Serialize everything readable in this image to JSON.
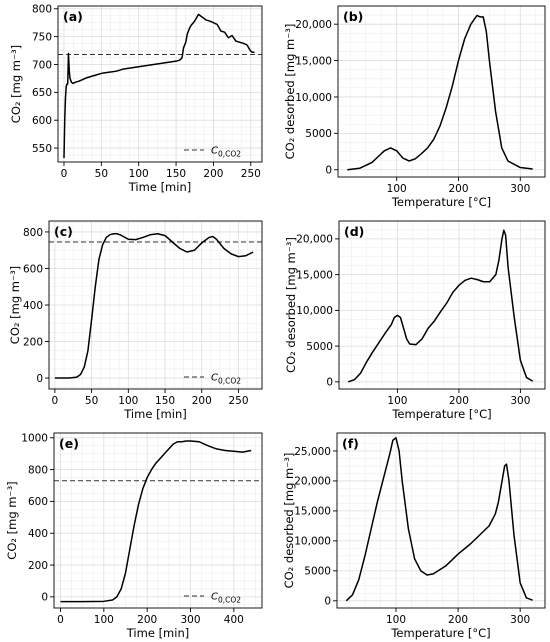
{
  "chart_data": [
    {
      "panel": "(a)",
      "type": "line",
      "xlabel": "Time [min]",
      "ylabel": "CO₂ [mg m⁻³]",
      "xlim": [
        -8,
        265
      ],
      "ylim": [
        525,
        805
      ],
      "xticks": [
        0,
        50,
        100,
        150,
        200,
        250
      ],
      "yticks": [
        550,
        600,
        650,
        700,
        750,
        800
      ],
      "ytick_labels": [
        "550",
        "600",
        "650",
        "700",
        "750",
        "800"
      ],
      "grid": true,
      "legend_position": "lower-right",
      "legend_label": "C0,CO2",
      "hline": 718,
      "series": [
        {
          "x": [
            0,
            1,
            2,
            3,
            4,
            5,
            6,
            7,
            8,
            9,
            10,
            12,
            15,
            20,
            25,
            30,
            40,
            50,
            60,
            70,
            80,
            90,
            100,
            110,
            120,
            130,
            140,
            150,
            155,
            158,
            160,
            163,
            165,
            168,
            170,
            175,
            180,
            185,
            190,
            195,
            200,
            205,
            210,
            215,
            220,
            225,
            230,
            235,
            240,
            245,
            248,
            250,
            252,
            255
          ],
          "y": [
            532,
            600,
            640,
            660,
            665,
            665,
            720,
            690,
            675,
            672,
            668,
            666,
            668,
            670,
            673,
            676,
            680,
            684,
            686,
            688,
            692,
            694,
            696,
            698,
            700,
            702,
            704,
            706,
            708,
            712,
            730,
            740,
            755,
            765,
            770,
            778,
            790,
            785,
            780,
            778,
            775,
            772,
            760,
            758,
            748,
            752,
            742,
            740,
            738,
            735,
            728,
            724,
            722,
            722
          ]
        }
      ]
    },
    {
      "panel": "(b)",
      "type": "line",
      "xlabel": "Temperature [°C]",
      "ylabel": "CO₂ desorbed [mg m⁻³]",
      "xlim": [
        5,
        340
      ],
      "ylim": [
        -1000,
        22500
      ],
      "xticks": [
        100,
        200,
        300
      ],
      "yticks": [
        0,
        5000,
        10000,
        15000,
        20000
      ],
      "ytick_labels": [
        "0",
        "5000",
        "10,000",
        "15,000",
        "20,000"
      ],
      "grid": true,
      "series": [
        {
          "x": [
            20,
            40,
            60,
            70,
            80,
            90,
            100,
            110,
            120,
            130,
            140,
            150,
            160,
            170,
            180,
            190,
            200,
            210,
            220,
            230,
            235,
            240,
            245,
            250,
            260,
            270,
            280,
            300,
            320
          ],
          "y": [
            0,
            200,
            1000,
            1800,
            2600,
            3000,
            2600,
            1600,
            1200,
            1500,
            2200,
            3000,
            4200,
            6000,
            8500,
            11500,
            15000,
            18000,
            20000,
            21200,
            21000,
            21000,
            19000,
            15000,
            8000,
            3000,
            1200,
            300,
            100
          ]
        }
      ]
    },
    {
      "panel": "(c)",
      "type": "line",
      "xlabel": "Time [min]",
      "ylabel": "CO₂ [mg m⁻³]",
      "xlim": [
        -8,
        282
      ],
      "ylim": [
        -60,
        860
      ],
      "xticks": [
        0,
        50,
        100,
        150,
        200,
        250
      ],
      "yticks": [
        0,
        200,
        400,
        600,
        800
      ],
      "ytick_labels": [
        "0",
        "200",
        "400",
        "600",
        "800"
      ],
      "grid": true,
      "legend_position": "lower-right",
      "legend_label": "C0,CO2",
      "hline": 745,
      "series": [
        {
          "x": [
            0,
            10,
            20,
            30,
            35,
            40,
            45,
            50,
            55,
            60,
            65,
            70,
            75,
            80,
            85,
            90,
            100,
            110,
            120,
            130,
            140,
            150,
            160,
            170,
            180,
            190,
            200,
            210,
            215,
            220,
            230,
            240,
            250,
            260,
            270
          ],
          "y": [
            0,
            0,
            0,
            5,
            20,
            60,
            150,
            320,
            500,
            650,
            730,
            770,
            785,
            790,
            790,
            782,
            760,
            758,
            770,
            785,
            790,
            780,
            745,
            710,
            690,
            700,
            740,
            770,
            775,
            760,
            710,
            680,
            665,
            670,
            690
          ]
        }
      ]
    },
    {
      "panel": "(d)",
      "type": "line",
      "xlabel": "Temperature [°C]",
      "ylabel": "CO₂ desorbed [mg m⁻³]",
      "xlim": [
        5,
        340
      ],
      "ylim": [
        -1000,
        22500
      ],
      "xticks": [
        100,
        200,
        300
      ],
      "yticks": [
        0,
        5000,
        10000,
        15000,
        20000
      ],
      "ytick_labels": [
        "0",
        "5000",
        "10,000",
        "15,000",
        "20,000"
      ],
      "grid": true,
      "series": [
        {
          "x": [
            20,
            30,
            40,
            50,
            60,
            70,
            80,
            90,
            95,
            100,
            105,
            110,
            115,
            120,
            130,
            140,
            150,
            160,
            170,
            180,
            190,
            200,
            210,
            220,
            230,
            240,
            250,
            260,
            265,
            270,
            273,
            276,
            280,
            290,
            300,
            310,
            320
          ],
          "y": [
            0,
            300,
            1200,
            2800,
            4200,
            5500,
            6800,
            8000,
            9000,
            9300,
            9000,
            7500,
            6000,
            5300,
            5200,
            6000,
            7500,
            8500,
            9800,
            11000,
            12500,
            13500,
            14200,
            14500,
            14300,
            14000,
            14000,
            15000,
            17000,
            20000,
            21200,
            20500,
            16000,
            9000,
            3000,
            600,
            100
          ]
        }
      ]
    },
    {
      "panel": "(e)",
      "type": "line",
      "xlabel": "Time [min]",
      "ylabel": "CO₂ [mg m⁻³]",
      "xlim": [
        -15,
        465
      ],
      "ylim": [
        -70,
        1030
      ],
      "xticks": [
        0,
        100,
        200,
        300,
        400
      ],
      "yticks": [
        0,
        200,
        400,
        600,
        800,
        1000
      ],
      "ytick_labels": [
        "0",
        "200",
        "400",
        "600",
        "800",
        "1000"
      ],
      "grid": true,
      "legend_position": "lower-right",
      "legend_label": "C0,CO2",
      "hline": 730,
      "series": [
        {
          "x": [
            0,
            50,
            100,
            120,
            130,
            140,
            150,
            160,
            170,
            180,
            190,
            200,
            210,
            220,
            230,
            240,
            250,
            260,
            270,
            280,
            290,
            300,
            320,
            340,
            360,
            380,
            400,
            420,
            440
          ],
          "y": [
            -30,
            -30,
            -28,
            -20,
            0,
            50,
            150,
            300,
            450,
            580,
            680,
            750,
            800,
            840,
            870,
            900,
            930,
            960,
            975,
            975,
            980,
            980,
            975,
            950,
            930,
            920,
            915,
            910,
            920
          ]
        }
      ]
    },
    {
      "panel": "(f)",
      "type": "line",
      "xlabel": "Temperature [°C]",
      "ylabel": "CO₂ desorbed [mg m⁻³]",
      "xlim": [
        5,
        340
      ],
      "ylim": [
        -1200,
        28000
      ],
      "xticks": [
        100,
        200,
        300
      ],
      "yticks": [
        0,
        5000,
        10000,
        15000,
        20000,
        25000
      ],
      "ytick_labels": [
        "0",
        "5000",
        "10,000",
        "15,000",
        "20,000",
        "25,000"
      ],
      "grid": true,
      "series": [
        {
          "x": [
            20,
            30,
            40,
            50,
            60,
            70,
            80,
            90,
            95,
            100,
            105,
            110,
            120,
            130,
            140,
            150,
            160,
            180,
            200,
            220,
            240,
            250,
            260,
            265,
            270,
            275,
            278,
            282,
            290,
            300,
            310,
            320
          ],
          "y": [
            0,
            1000,
            3500,
            7500,
            12000,
            16500,
            20500,
            24500,
            26800,
            27200,
            25000,
            20000,
            12000,
            7000,
            5000,
            4300,
            4500,
            5800,
            7800,
            9500,
            11500,
            12500,
            14500,
            16500,
            19500,
            22500,
            22800,
            20000,
            11000,
            3000,
            500,
            100
          ]
        }
      ]
    }
  ]
}
